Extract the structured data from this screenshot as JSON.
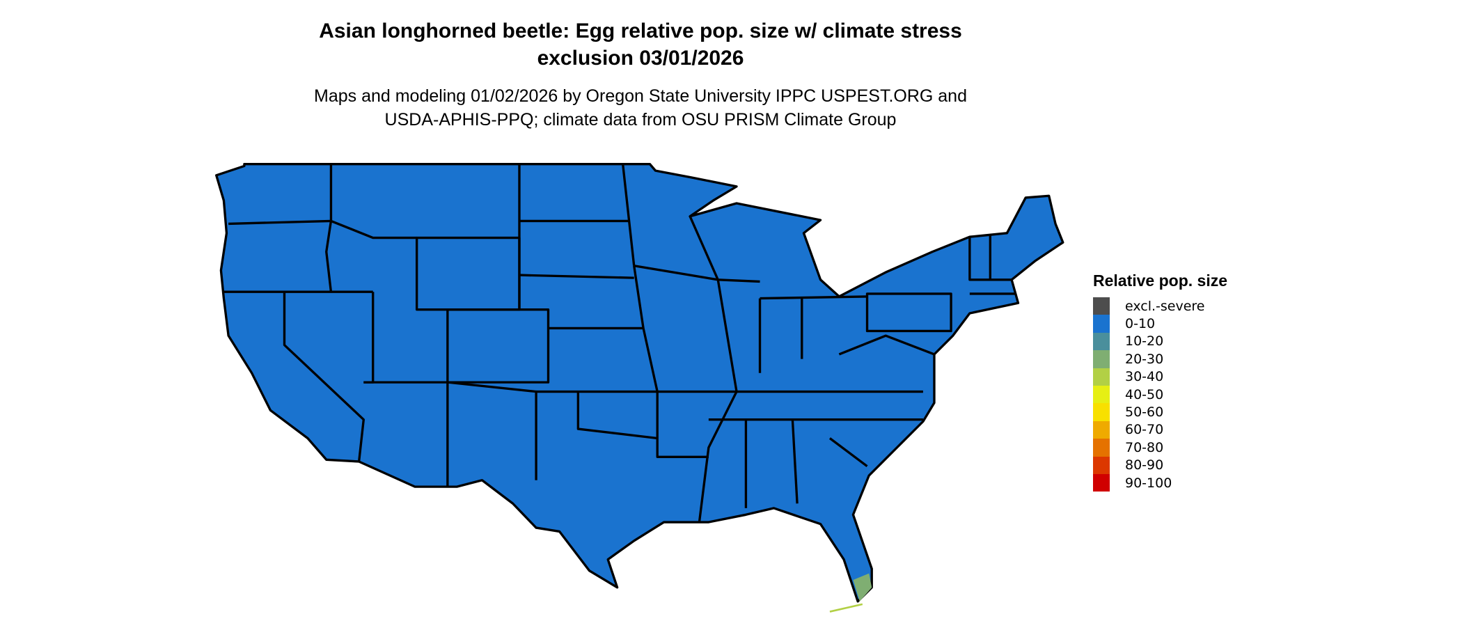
{
  "title_line1": "Asian longhorned beetle: Egg relative pop. size w/ climate stress",
  "title_line2": "exclusion 03/01/2026",
  "subtitle_line1": "Maps and modeling 01/02/2026 by Oregon State University IPPC USPEST.ORG and",
  "subtitle_line2": "USDA-APHIS-PPQ; climate data from OSU PRISM Climate Group",
  "map": {
    "region": "Contiguous United States",
    "dominant_class": "0-10",
    "notes_visible_classes": [
      "0-10",
      "10-20",
      "20-30",
      "30-40"
    ],
    "colors": {
      "state_fill": "#1a73cf",
      "border": "#000000"
    }
  },
  "legend": {
    "title": "Relative pop. size",
    "items": [
      {
        "label": "excl.-severe",
        "color": "#4d4d4d"
      },
      {
        "label": "0-10",
        "color": "#1a73cf"
      },
      {
        "label": "10-20",
        "color": "#4a8f9c"
      },
      {
        "label": "20-30",
        "color": "#7fae72"
      },
      {
        "label": "30-40",
        "color": "#b2d045"
      },
      {
        "label": "40-50",
        "color": "#e6ef14"
      },
      {
        "label": "50-60",
        "color": "#f8e000"
      },
      {
        "label": "60-70",
        "color": "#efaa00"
      },
      {
        "label": "70-80",
        "color": "#e57200"
      },
      {
        "label": "80-90",
        "color": "#dc3800"
      },
      {
        "label": "90-100",
        "color": "#d00000"
      }
    ]
  }
}
